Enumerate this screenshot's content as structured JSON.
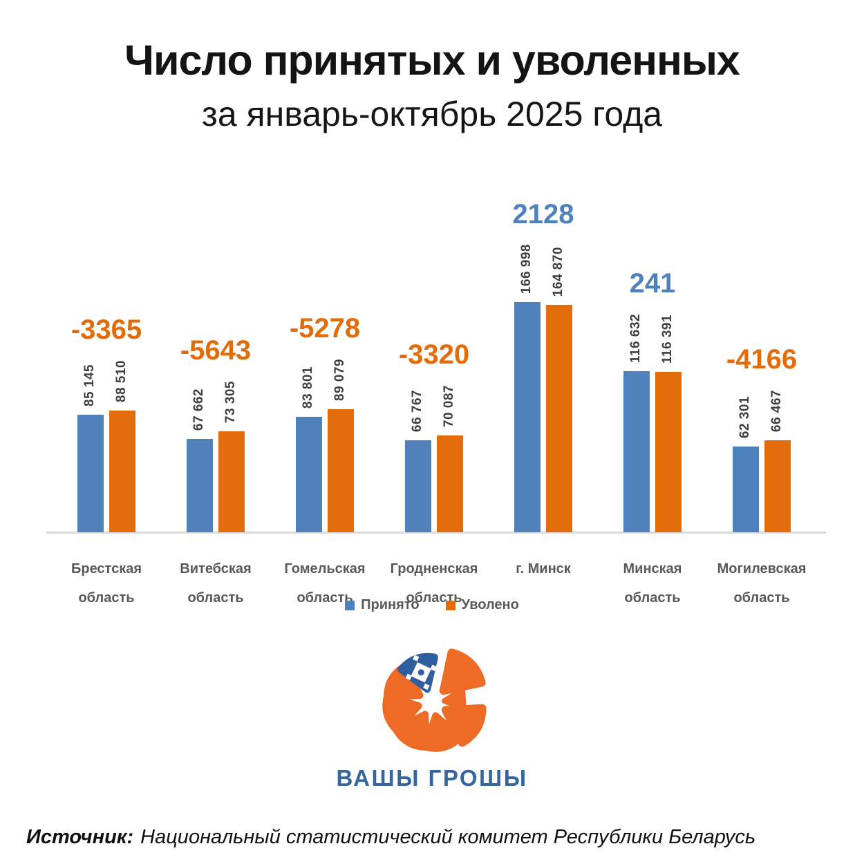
{
  "chart_data": {
    "type": "bar",
    "title": "Число принятых и уволенных",
    "subtitle": "за январь-октябрь 2025 года",
    "categories": [
      "Брестская область",
      "Витебская область",
      "Гомельская область",
      "Гродненская область",
      "г. Минск",
      "Минская область",
      "Могилевская область"
    ],
    "category_lines": [
      [
        "Брестская",
        "область"
      ],
      [
        "Витебская",
        "область"
      ],
      [
        "Гомельская",
        "область"
      ],
      [
        "Гродненская",
        "область"
      ],
      [
        "г. Минск"
      ],
      [
        "Минская",
        "область"
      ],
      [
        "Могилевская",
        "область"
      ]
    ],
    "series": [
      {
        "name": "Принято",
        "color": "#4F81BD",
        "values": [
          85145,
          67662,
          83801,
          66767,
          166998,
          116632,
          62301
        ]
      },
      {
        "name": "Уволено",
        "color": "#E36C0A",
        "values": [
          88510,
          73305,
          89079,
          70087,
          164870,
          116391,
          66467
        ]
      }
    ],
    "diffs": [
      -3365,
      -5643,
      -5278,
      -3320,
      2128,
      241,
      -4166
    ],
    "diff_colors": {
      "positive": "#4F81BD",
      "negative": "#E36C0A"
    },
    "value_label_color": "#3F3F3F",
    "axis_line_color": "#D9D9D9",
    "grid": false,
    "legend_position": "bottom",
    "baseline": 0
  },
  "logo": {
    "text": "ВАШЫ ГРОШЫ",
    "orange": "#EE6B26",
    "blue": "#35669F"
  },
  "footer": {
    "source_label": "Источник:",
    "source_text": "Национальный статистический комитет Республики Беларусь"
  }
}
